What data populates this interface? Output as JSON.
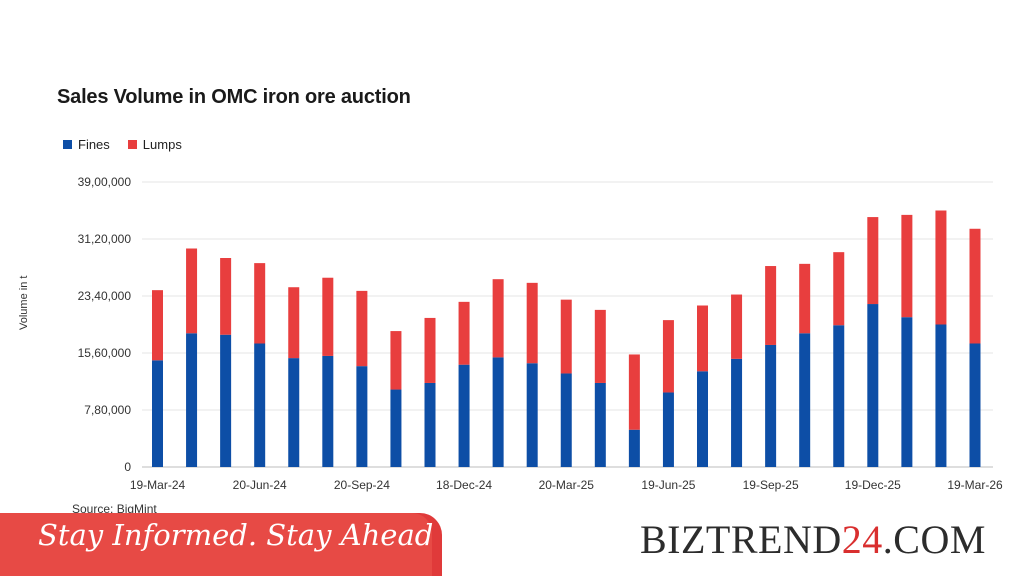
{
  "chart_data": {
    "type": "bar",
    "stacked": true,
    "title": "Sales Volume in OMC iron ore auction",
    "ylabel": "Volume in t",
    "source": "Source: BigMint",
    "ylim": [
      0,
      3900000
    ],
    "yticks": [
      "0",
      "7,80,000",
      "15,60,000",
      "23,40,000",
      "31,20,000",
      "39,00,000"
    ],
    "ytick_values": [
      0,
      780000,
      1560000,
      2340000,
      3120000,
      3900000
    ],
    "xtick_labels": [
      "19-Mar-24",
      "20-Jun-24",
      "20-Sep-24",
      "18-Dec-24",
      "20-Mar-25",
      "19-Jun-25",
      "19-Sep-25",
      "19-Dec-25",
      "19-Mar-26"
    ],
    "xtick_positions": [
      0,
      3,
      6,
      9,
      12,
      15,
      18,
      21,
      24
    ],
    "legend_position": "top-left",
    "grid": true,
    "n_bars": 25,
    "series": [
      {
        "name": "Fines",
        "color": "#0d4ea6",
        "values": [
          1460000,
          1830000,
          1810000,
          1690000,
          1490000,
          1520000,
          1380000,
          1060000,
          1150000,
          1400000,
          1500000,
          1420000,
          1280000,
          1150000,
          510000,
          1020000,
          1310000,
          1480000,
          1670000,
          1830000,
          1940000,
          2230000,
          2050000,
          1950000,
          1690000
        ]
      },
      {
        "name": "Lumps",
        "color": "#e83e3e",
        "values": [
          960000,
          1160000,
          1050000,
          1100000,
          970000,
          1070000,
          1030000,
          800000,
          890000,
          860000,
          1070000,
          1100000,
          1010000,
          1000000,
          1030000,
          990000,
          900000,
          880000,
          1080000,
          950000,
          1000000,
          1190000,
          1400000,
          1560000,
          1570000
        ]
      }
    ]
  },
  "banner": {
    "tagline": "Stay Informed. Stay Ahead",
    "brand_part1": "BIZTREND",
    "brand_part2": "24",
    "brand_part3": ".COM"
  }
}
